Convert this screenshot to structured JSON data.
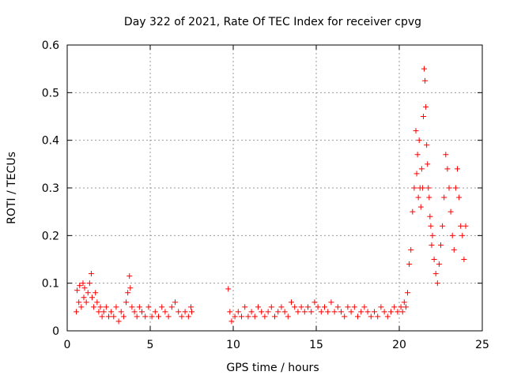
{
  "chart_data": {
    "type": "scatter",
    "title": "Day 322 of 2021, Rate Of TEC Index for receiver cpvg",
    "xlabel": "GPS time / hours",
    "ylabel": "ROTI / TECUs",
    "xlim": [
      0,
      25
    ],
    "ylim": [
      0,
      0.6
    ],
    "xticks": [
      0,
      5,
      10,
      15,
      20,
      25
    ],
    "yticks": [
      0,
      0.1,
      0.2,
      0.3,
      0.4,
      0.5,
      0.6
    ],
    "grid": true,
    "marker": "plus",
    "marker_color": "#ff0000",
    "series": [
      {
        "x": [
          0.55,
          0.6,
          0.7,
          0.75,
          0.85,
          0.95,
          1.0,
          1.05,
          1.15,
          1.25,
          1.35,
          1.45,
          1.5,
          1.6,
          1.7,
          1.8,
          1.9,
          2.0,
          2.1,
          2.2,
          2.35,
          2.5,
          2.65,
          2.8,
          2.95,
          3.1,
          3.25,
          3.4,
          3.55,
          3.65,
          3.75,
          3.8,
          3.9,
          4.05,
          4.2,
          4.35,
          4.5,
          4.7,
          4.9,
          5.1,
          5.3,
          5.5,
          5.7,
          5.9,
          6.1,
          6.3,
          6.5,
          6.7,
          6.9,
          7.1,
          7.3,
          7.45,
          7.5,
          9.7,
          9.8,
          9.9,
          10.1,
          10.3,
          10.5,
          10.7,
          10.9,
          11.1,
          11.3,
          11.5,
          11.7,
          11.9,
          12.1,
          12.3,
          12.5,
          12.7,
          12.9,
          13.1,
          13.3,
          13.5,
          13.7,
          13.9,
          14.1,
          14.3,
          14.5,
          14.7,
          14.9,
          15.1,
          15.3,
          15.5,
          15.7,
          15.9,
          16.1,
          16.3,
          16.5,
          16.7,
          16.9,
          17.1,
          17.3,
          17.5,
          17.7,
          17.9,
          18.1,
          18.3,
          18.5,
          18.7,
          18.9,
          19.1,
          19.3,
          19.5,
          19.7,
          19.9,
          20.1,
          20.2,
          20.3,
          20.4,
          20.5,
          20.6,
          20.7,
          20.8,
          20.9,
          21.0,
          21.05,
          21.1,
          21.15,
          21.2,
          21.25,
          21.3,
          21.35,
          21.4,
          21.45,
          21.5,
          21.55,
          21.6,
          21.65,
          21.7,
          21.75,
          21.8,
          21.85,
          21.9,
          21.95,
          22.0,
          22.1,
          22.2,
          22.3,
          22.4,
          22.5,
          22.6,
          22.7,
          22.8,
          22.9,
          23.0,
          23.1,
          23.2,
          23.3,
          23.4,
          23.5,
          23.6,
          23.7,
          23.8,
          23.9,
          24.0
        ],
        "y": [
          0.04,
          0.085,
          0.06,
          0.095,
          0.05,
          0.1,
          0.07,
          0.09,
          0.06,
          0.08,
          0.1,
          0.12,
          0.07,
          0.05,
          0.08,
          0.06,
          0.04,
          0.05,
          0.03,
          0.04,
          0.05,
          0.03,
          0.04,
          0.03,
          0.05,
          0.02,
          0.04,
          0.03,
          0.06,
          0.08,
          0.115,
          0.09,
          0.05,
          0.04,
          0.03,
          0.05,
          0.04,
          0.03,
          0.05,
          0.03,
          0.04,
          0.03,
          0.05,
          0.04,
          0.03,
          0.05,
          0.06,
          0.04,
          0.03,
          0.04,
          0.03,
          0.05,
          0.04,
          0.088,
          0.04,
          0.02,
          0.03,
          0.04,
          0.03,
          0.05,
          0.03,
          0.04,
          0.03,
          0.05,
          0.04,
          0.03,
          0.04,
          0.05,
          0.03,
          0.04,
          0.05,
          0.04,
          0.03,
          0.06,
          0.05,
          0.04,
          0.05,
          0.04,
          0.05,
          0.04,
          0.06,
          0.05,
          0.04,
          0.05,
          0.04,
          0.06,
          0.04,
          0.05,
          0.04,
          0.03,
          0.05,
          0.04,
          0.05,
          0.03,
          0.04,
          0.05,
          0.04,
          0.03,
          0.04,
          0.03,
          0.05,
          0.04,
          0.03,
          0.04,
          0.05,
          0.04,
          0.05,
          0.04,
          0.06,
          0.05,
          0.08,
          0.14,
          0.17,
          0.25,
          0.3,
          0.42,
          0.33,
          0.37,
          0.28,
          0.4,
          0.3,
          0.26,
          0.34,
          0.3,
          0.45,
          0.55,
          0.525,
          0.47,
          0.39,
          0.35,
          0.3,
          0.28,
          0.24,
          0.22,
          0.18,
          0.2,
          0.15,
          0.12,
          0.1,
          0.14,
          0.18,
          0.22,
          0.28,
          0.37,
          0.34,
          0.3,
          0.25,
          0.2,
          0.17,
          0.3,
          0.34,
          0.28,
          0.22,
          0.2,
          0.15,
          0.22
        ]
      }
    ]
  }
}
